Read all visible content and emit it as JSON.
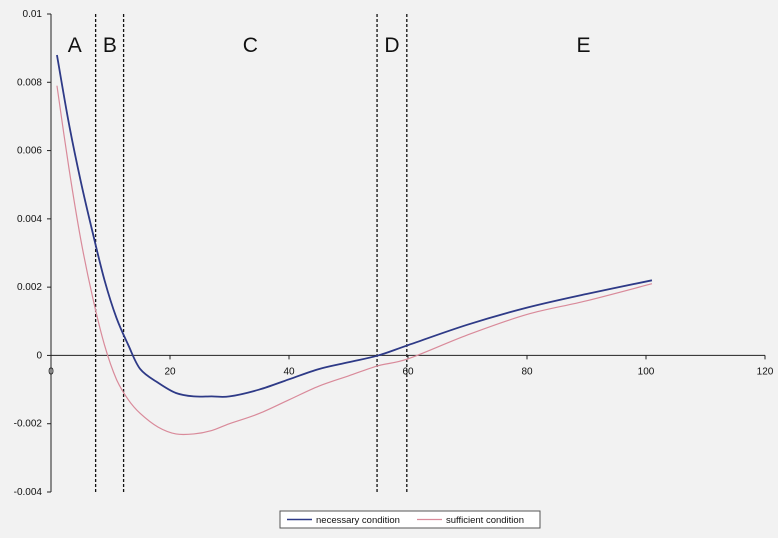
{
  "chart_data": {
    "type": "line",
    "title": "",
    "xlabel": "",
    "ylabel": "",
    "xlim": [
      0,
      120
    ],
    "ylim": [
      -0.004,
      0.01
    ],
    "x_ticks": [
      "0",
      "20",
      "40",
      "60",
      "80",
      "100",
      "120"
    ],
    "y_ticks": [
      "-0.004",
      "-0.002",
      "0",
      "0.002",
      "0.004",
      "0.006",
      "0.008",
      "0.01"
    ],
    "grid": false,
    "legend_position": "bottom",
    "series": [
      {
        "name": "necessary condition",
        "color": "#2e3a87",
        "x": [
          1,
          3,
          5,
          7,
          9,
          11,
          13,
          15,
          18,
          21,
          24,
          27,
          30,
          35,
          40,
          45,
          50,
          55,
          60,
          70,
          80,
          90,
          101
        ],
        "y": [
          0.0088,
          0.0068,
          0.0051,
          0.0036,
          0.0022,
          0.0011,
          0.0003,
          -0.0004,
          -0.0008,
          -0.0011,
          -0.0012,
          -0.0012,
          -0.0012,
          -0.001,
          -0.0007,
          -0.0004,
          -0.0002,
          0.0,
          0.0003,
          0.0009,
          0.0014,
          0.0018,
          0.0022
        ]
      },
      {
        "name": "sufficient condition",
        "color": "#d98a9a",
        "x": [
          1,
          3,
          5,
          7,
          9,
          11,
          13,
          15,
          18,
          21,
          24,
          27,
          30,
          35,
          40,
          45,
          50,
          55,
          60,
          70,
          80,
          90,
          101
        ],
        "y": [
          0.0079,
          0.0055,
          0.0034,
          0.0017,
          0.0003,
          -0.0007,
          -0.0013,
          -0.0017,
          -0.0021,
          -0.0023,
          -0.0023,
          -0.0022,
          -0.002,
          -0.0017,
          -0.0013,
          -0.0009,
          -0.0006,
          -0.0003,
          -0.0001,
          0.0006,
          0.0012,
          0.0016,
          0.0021
        ]
      }
    ],
    "region_boundaries": [
      7.5,
      12.2,
      54.8,
      59.8
    ],
    "regions": [
      {
        "label": "A",
        "x": 4
      },
      {
        "label": "B",
        "x": 9.9
      },
      {
        "label": "C",
        "x": 33.5
      },
      {
        "label": "D",
        "x": 57.3
      },
      {
        "label": "E",
        "x": 89.5
      }
    ]
  }
}
